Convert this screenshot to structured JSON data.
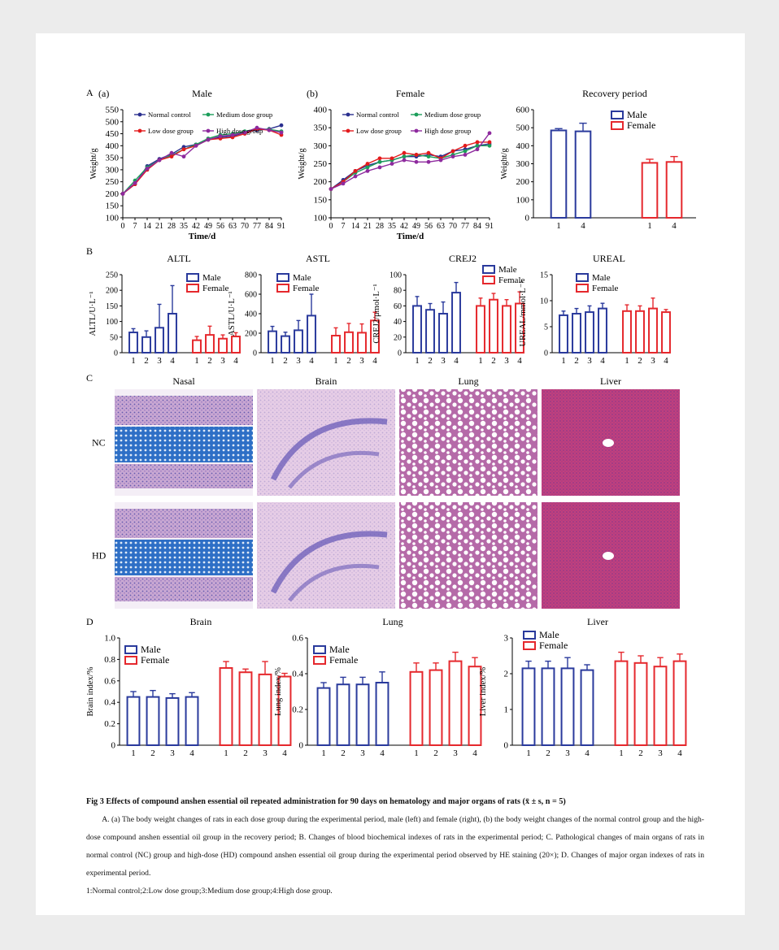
{
  "colors": {
    "male": "#2a3a9c",
    "female": "#e5282d",
    "normal_control": "#2a2f8f",
    "low_dose": "#e31a1c",
    "medium_dose": "#1b9e5a",
    "high_dose": "#8e2a9e"
  },
  "panels": {
    "A": "A",
    "B": "B",
    "C": "C",
    "D": "D"
  },
  "histology": {
    "columns": [
      "Nasal",
      "Brain",
      "Lung",
      "Liver"
    ],
    "rows": [
      "NC",
      "HD"
    ]
  },
  "caption": {
    "title": "Fig 3   Effects of compound anshen essential oil repeated administration for 90 days on hematology and major organs of rats",
    "title_stat": "(x̄ ± s, n = 5)",
    "body": "A. (a) The body weight changes of rats in each dose group during the experimental period, male (left) and female (right), (b) the body weight changes of the normal control group and the high-dose compound anshen essential oil group in the recovery period; B. Changes of blood biochemical indexes of rats in the experimental period; C. Pathological changes of main organs of rats in normal control (NC) group and high-dose (HD) compound anshen essential oil group during the experimental period observed by HE staining (20×); D. Changes of major organ indexes of rats in experimental period.",
    "legend": "1:Normal control;2:Low dose group;3:Medium dose group;4:High dose group."
  },
  "chart_data": [
    {
      "id": "A-male",
      "type": "line",
      "panel_label": "(a)",
      "title": "Male",
      "xlabel": "Time/d",
      "ylabel": "Weight/g",
      "x": [
        0,
        7,
        14,
        21,
        28,
        35,
        42,
        49,
        56,
        63,
        70,
        77,
        84,
        91
      ],
      "ylim": [
        100,
        550
      ],
      "yticks": [
        100,
        150,
        200,
        250,
        300,
        350,
        400,
        450,
        500,
        550
      ],
      "series": [
        {
          "name": "Normal control",
          "color": "normal_control",
          "values": [
            200,
            240,
            315,
            345,
            365,
            395,
            405,
            425,
            435,
            440,
            455,
            465,
            470,
            485
          ]
        },
        {
          "name": "Medium dose group",
          "color": "medium_dose",
          "values": [
            200,
            255,
            310,
            340,
            360,
            385,
            405,
            430,
            445,
            450,
            460,
            470,
            468,
            460
          ]
        },
        {
          "name": "Low dose group",
          "color": "low_dose",
          "values": [
            200,
            240,
            300,
            340,
            355,
            385,
            400,
            425,
            430,
            435,
            450,
            470,
            465,
            445
          ]
        },
        {
          "name": "High dose group",
          "color": "high_dose",
          "values": [
            200,
            245,
            305,
            340,
            370,
            355,
            400,
            425,
            440,
            445,
            455,
            475,
            465,
            455
          ]
        }
      ]
    },
    {
      "id": "A-female",
      "type": "line",
      "panel_label": "(b)",
      "title": "Female",
      "xlabel": "Time/d",
      "ylabel": "Weight/g",
      "x": [
        0,
        7,
        14,
        21,
        28,
        35,
        42,
        49,
        56,
        63,
        70,
        77,
        84,
        91
      ],
      "ylim": [
        100,
        400
      ],
      "yticks": [
        100,
        150,
        200,
        250,
        300,
        350,
        400
      ],
      "series": [
        {
          "name": "Normal control",
          "color": "normal_control",
          "values": [
            180,
            205,
            230,
            245,
            255,
            260,
            270,
            270,
            275,
            270,
            285,
            290,
            300,
            305
          ]
        },
        {
          "name": "Medium dose group",
          "color": "medium_dose",
          "values": [
            180,
            200,
            225,
            240,
            255,
            260,
            270,
            275,
            270,
            265,
            275,
            285,
            300,
            300
          ]
        },
        {
          "name": "Low dose group",
          "color": "low_dose",
          "values": [
            180,
            200,
            230,
            250,
            265,
            265,
            280,
            275,
            280,
            265,
            285,
            300,
            310,
            310
          ]
        },
        {
          "name": "High dose group",
          "color": "high_dose",
          "values": [
            180,
            195,
            215,
            230,
            240,
            250,
            260,
            255,
            255,
            260,
            270,
            275,
            290,
            335
          ]
        }
      ]
    },
    {
      "id": "A-recovery",
      "type": "bar",
      "title": "Recovery period",
      "ylabel": "Weight/g",
      "ylim": [
        0,
        600
      ],
      "yticks": [
        0,
        100,
        200,
        300,
        400,
        500,
        600
      ],
      "categories": [
        "1",
        "4"
      ],
      "series": [
        {
          "name": "Male",
          "color": "male",
          "values": [
            485,
            480
          ],
          "errors": [
            10,
            45
          ]
        },
        {
          "name": "Female",
          "color": "female",
          "values": [
            305,
            310
          ],
          "errors": [
            20,
            30
          ]
        }
      ]
    },
    {
      "id": "B-ALTL",
      "type": "bar",
      "title": "ALTL",
      "ylabel": "ALTL/U·L⁻¹",
      "ylim": [
        0,
        250
      ],
      "yticks": [
        0,
        50,
        100,
        150,
        200,
        250
      ],
      "categories": [
        "1",
        "2",
        "3",
        "4"
      ],
      "series": [
        {
          "name": "Male",
          "color": "male",
          "values": [
            65,
            50,
            80,
            125
          ],
          "errors": [
            12,
            20,
            75,
            90
          ]
        },
        {
          "name": "Female",
          "color": "female",
          "values": [
            40,
            57,
            45,
            52
          ],
          "errors": [
            12,
            28,
            12,
            12
          ]
        }
      ]
    },
    {
      "id": "B-ASTL",
      "type": "bar",
      "title": "ASTL",
      "ylabel": "ASTL/U·L⁻¹",
      "ylim": [
        0,
        800
      ],
      "yticks": [
        0,
        200,
        400,
        600,
        800
      ],
      "categories": [
        "1",
        "2",
        "3",
        "4"
      ],
      "series": [
        {
          "name": "Male",
          "color": "male",
          "values": [
            220,
            170,
            230,
            380
          ],
          "errors": [
            50,
            40,
            100,
            220
          ]
        },
        {
          "name": "Female",
          "color": "female",
          "values": [
            175,
            210,
            205,
            330
          ],
          "errors": [
            80,
            90,
            90,
            85
          ]
        }
      ]
    },
    {
      "id": "B-CREJ2",
      "type": "bar",
      "title": "CREJ2",
      "ylabel": "CREJ2/μmol·L⁻¹",
      "ylim": [
        0,
        100
      ],
      "yticks": [
        0,
        20,
        40,
        60,
        80,
        100
      ],
      "categories": [
        "1",
        "2",
        "3",
        "4"
      ],
      "series": [
        {
          "name": "Male",
          "color": "male",
          "values": [
            60,
            55,
            50,
            77
          ],
          "errors": [
            12,
            8,
            15,
            13
          ]
        },
        {
          "name": "Female",
          "color": "female",
          "values": [
            60,
            68,
            60,
            63
          ],
          "errors": [
            10,
            8,
            8,
            15
          ]
        }
      ]
    },
    {
      "id": "B-UREAL",
      "type": "bar",
      "title": "UREAL",
      "ylabel": "UREAL/mmol·L⁻¹",
      "ylim": [
        0,
        15
      ],
      "yticks": [
        0,
        5,
        10,
        15
      ],
      "categories": [
        "1",
        "2",
        "3",
        "4"
      ],
      "series": [
        {
          "name": "Male",
          "color": "male",
          "values": [
            7.2,
            7.5,
            7.8,
            8.5
          ],
          "errors": [
            0.8,
            1.0,
            1.2,
            1.0
          ]
        },
        {
          "name": "Female",
          "color": "female",
          "values": [
            8.0,
            8.0,
            8.5,
            7.8
          ],
          "errors": [
            1.2,
            1.0,
            2.0,
            0.5
          ]
        }
      ]
    },
    {
      "id": "D-Brain",
      "type": "bar",
      "title": "Brain",
      "ylabel": "Brain index/%",
      "ylim": [
        0,
        1.0
      ],
      "yticks": [
        "0",
        "0.2",
        "0.4",
        "0.6",
        "0.8",
        "1.0"
      ],
      "categories": [
        "1",
        "2",
        "3",
        "4"
      ],
      "series": [
        {
          "name": "Male",
          "color": "male",
          "values": [
            0.45,
            0.45,
            0.44,
            0.45
          ],
          "errors": [
            0.05,
            0.06,
            0.04,
            0.04
          ]
        },
        {
          "name": "Female",
          "color": "female",
          "values": [
            0.72,
            0.68,
            0.66,
            0.64
          ],
          "errors": [
            0.06,
            0.03,
            0.12,
            0.03
          ]
        }
      ]
    },
    {
      "id": "D-Lung",
      "type": "bar",
      "title": "Lung",
      "ylabel": "Lung index/%",
      "ylim": [
        0,
        0.6
      ],
      "yticks": [
        "0",
        "0.2",
        "0.4",
        "0.6"
      ],
      "categories": [
        "1",
        "2",
        "3",
        "4"
      ],
      "series": [
        {
          "name": "Male",
          "color": "male",
          "values": [
            0.32,
            0.34,
            0.34,
            0.35
          ],
          "errors": [
            0.03,
            0.04,
            0.04,
            0.06
          ]
        },
        {
          "name": "Female",
          "color": "female",
          "values": [
            0.41,
            0.42,
            0.47,
            0.44
          ],
          "errors": [
            0.05,
            0.04,
            0.05,
            0.05
          ]
        }
      ]
    },
    {
      "id": "D-Liver",
      "type": "bar",
      "title": "Liver",
      "ylabel": "Liver index/%",
      "ylim": [
        0,
        3
      ],
      "yticks": [
        "0",
        "1",
        "2",
        "3"
      ],
      "categories": [
        "1",
        "2",
        "3",
        "4"
      ],
      "series": [
        {
          "name": "Male",
          "color": "male",
          "values": [
            2.15,
            2.15,
            2.15,
            2.1
          ],
          "errors": [
            0.2,
            0.2,
            0.3,
            0.15
          ]
        },
        {
          "name": "Female",
          "color": "female",
          "values": [
            2.35,
            2.3,
            2.2,
            2.35
          ],
          "errors": [
            0.25,
            0.2,
            0.25,
            0.2
          ]
        }
      ]
    }
  ]
}
